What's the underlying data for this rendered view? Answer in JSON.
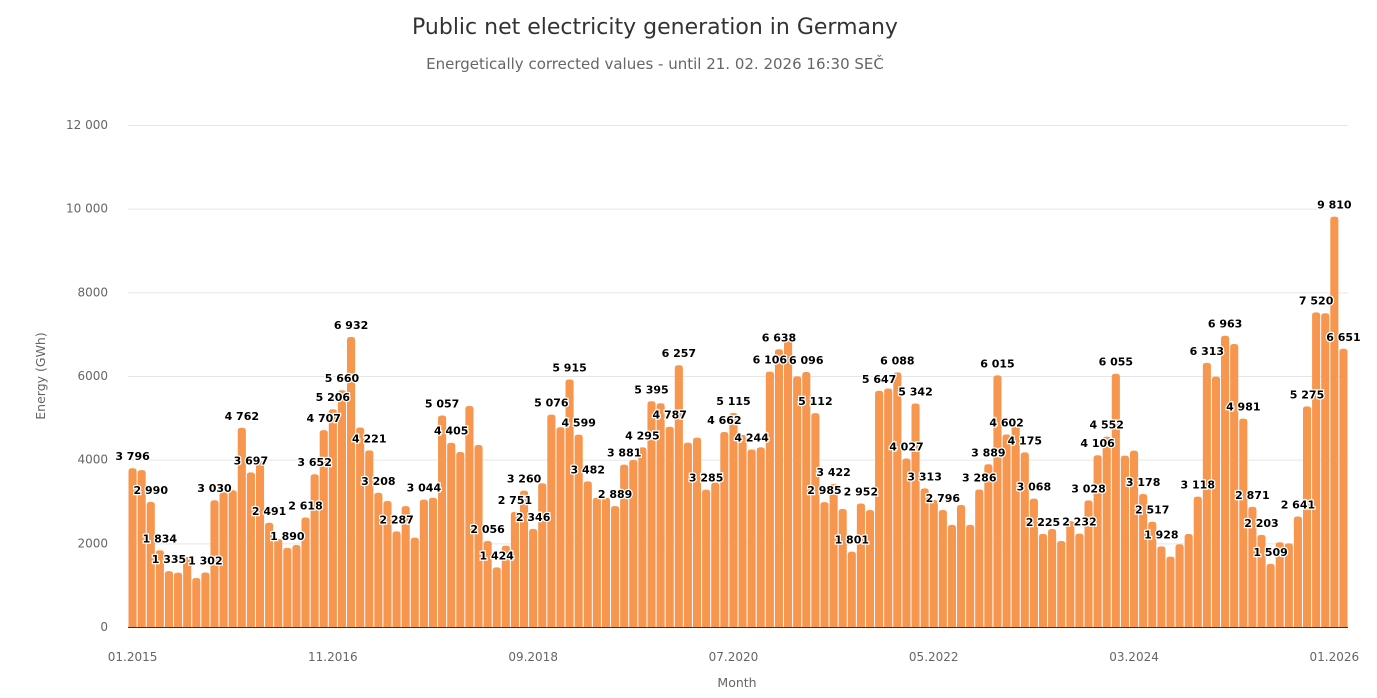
{
  "chart_data": {
    "type": "bar",
    "title": "Public net electricity generation in Germany",
    "subtitle": "Energetically corrected values - until 21. 02. 2026 16:30 SEČ",
    "xlabel": "Month",
    "ylabel": "Energy (GWh)",
    "ylim": [
      0,
      12000
    ],
    "yticks": [
      0,
      2000,
      4000,
      6000,
      8000,
      10000,
      12000
    ],
    "ytick_labels": [
      "0",
      "2000",
      "4000",
      "6000",
      "8000",
      "10 000",
      "12 000"
    ],
    "x_start": "01.2015",
    "x_end": "02.2026",
    "xtick_labels": [
      "01.2015",
      "11.2016",
      "09.2018",
      "07.2020",
      "05.2022",
      "03.2024",
      "01.2026"
    ],
    "xtick_step_months": 22,
    "grid": true,
    "legend": "none",
    "color": "#f7964f",
    "values": [
      3796,
      3750,
      2990,
      1834,
      1335,
      1300,
      1673,
      1170,
      1302,
      3030,
      3220,
      3270,
      4762,
      3697,
      3960,
      2491,
      2100,
      1890,
      1960,
      2618,
      3652,
      4707,
      5206,
      5660,
      6932,
      4770,
      4221,
      3208,
      3012,
      2287,
      2890,
      2135,
      3044,
      3091,
      5057,
      4405,
      4183,
      5283,
      4350,
      2056,
      1424,
      1944,
      2751,
      3260,
      2346,
      3435,
      5076,
      4774,
      5915,
      4599,
      3482,
      3090,
      3090,
      2889,
      3881,
      3992,
      4295,
      5395,
      5350,
      4787,
      6257,
      4406,
      4526,
      3285,
      3450,
      4662,
      5115,
      4590,
      4244,
      4295,
      6106,
      6638,
      6870,
      5990,
      6096,
      5112,
      2985,
      3422,
      2820,
      1801,
      2952,
      2797,
      5647,
      5700,
      6088,
      4027,
      5342,
      3313,
      3036,
      2796,
      2440,
      2917,
      2440,
      3286,
      3889,
      6015,
      4602,
      4853,
      4175,
      3068,
      2225,
      2343,
      2056,
      2530,
      2232,
      3028,
      4106,
      4552,
      6055,
      4096,
      4215,
      3178,
      2517,
      1928,
      1681,
      1977,
      2223,
      3118,
      6313,
      5984,
      6963,
      6765,
      4981,
      2871,
      2203,
      1509,
      2025,
      2000,
      2641,
      5275,
      7520,
      7500,
      9810,
      6651
    ],
    "data_labels_shown_at": [
      0,
      2,
      3,
      4,
      8,
      9,
      12,
      13,
      15,
      17,
      19,
      20,
      21,
      22,
      23,
      24,
      26,
      27,
      29,
      32,
      34,
      35,
      39,
      40,
      42,
      43,
      44,
      46,
      48,
      49,
      50,
      53,
      54,
      56,
      57,
      59,
      60,
      63,
      65,
      66,
      68,
      70,
      71,
      74,
      75,
      76,
      77,
      79,
      80,
      82,
      84,
      85,
      86,
      87,
      89,
      93,
      94,
      95,
      96,
      98,
      99,
      100,
      104,
      105,
      106,
      107,
      108,
      111,
      112,
      113,
      117,
      118,
      120,
      122,
      123,
      124,
      125,
      128,
      129,
      130,
      132,
      133
    ]
  }
}
